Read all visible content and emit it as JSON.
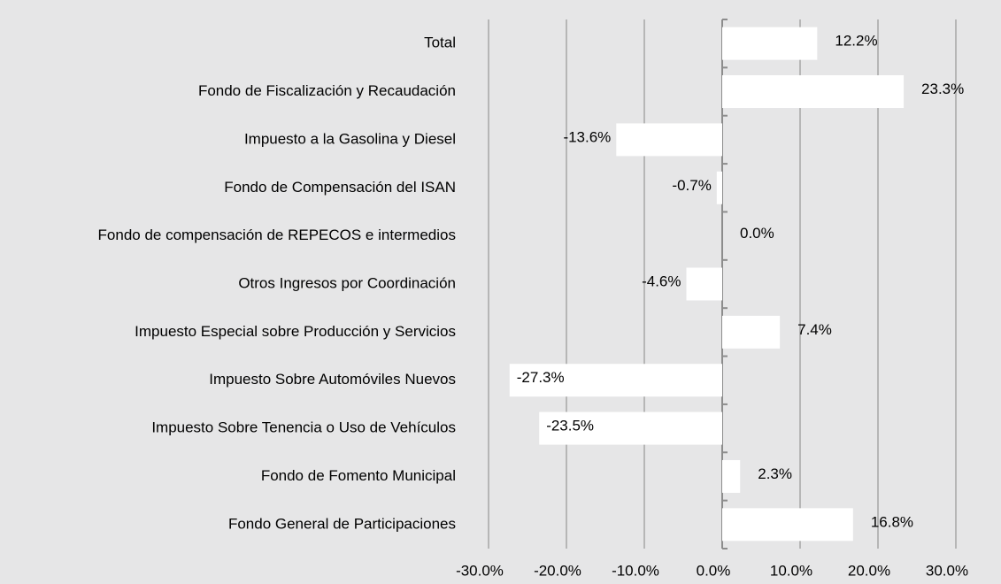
{
  "chart_data": {
    "type": "bar",
    "orientation": "horizontal",
    "categories": [
      "Total",
      "Fondo de Fiscalización y Recaudación",
      "Impuesto a la Gasolina y Diesel",
      "Fondo de Compensación del ISAN",
      "Fondo de compensación de REPECOS e intermedios",
      "Otros Ingresos por Coordinación",
      "Impuesto Especial sobre Producción y Servicios",
      "Impuesto Sobre Automóviles Nuevos",
      "Impuesto Sobre Tenencia o Uso de Vehículos",
      "Fondo de Fomento Municipal",
      "Fondo General de Participaciones"
    ],
    "values": [
      12.2,
      23.3,
      -13.6,
      -0.7,
      0.0,
      -4.6,
      7.4,
      -27.3,
      -23.5,
      2.3,
      16.8
    ],
    "value_labels": [
      "12.2%",
      "23.3%",
      "-13.6%",
      "-0.7%",
      "0.0%",
      "-4.6%",
      "7.4%",
      "-27.3%",
      "-23.5%",
      "2.3%",
      "16.8%"
    ],
    "color": "#ffffff",
    "xlim": [
      -30,
      30
    ],
    "xticks": [
      {
        "value": -30,
        "label": "-30.0%"
      },
      {
        "value": -20,
        "label": "-20.0%"
      },
      {
        "value": -10,
        "label": "-10.0%"
      },
      {
        "value": 0,
        "label": "0.0%"
      },
      {
        "value": 10,
        "label": "10.0%"
      },
      {
        "value": 20,
        "label": "20.0%"
      },
      {
        "value": 30,
        "label": "30.0%"
      }
    ],
    "grid": true
  }
}
